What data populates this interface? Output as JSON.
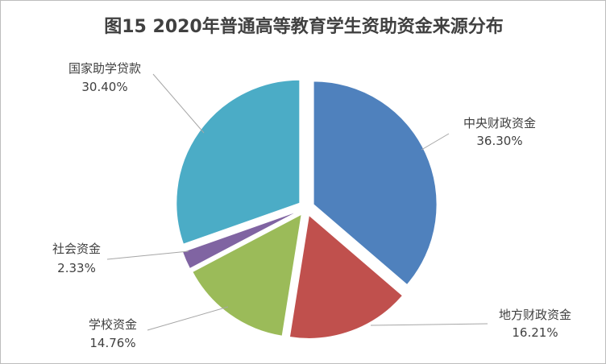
{
  "chart_data": {
    "type": "pie",
    "title": "图15  2020年普通高等教育学生资助资金来源分布",
    "start_angle_deg": 0,
    "exploded": true,
    "slices": [
      {
        "name": "中央财政资金",
        "value": 36.3,
        "label": "36.30%",
        "color": "#4F81BD"
      },
      {
        "name": "地方财政资金",
        "value": 16.21,
        "label": "16.21%",
        "color": "#C0504D"
      },
      {
        "name": "学校资金",
        "value": 14.76,
        "label": "14.76%",
        "color": "#9BBB59"
      },
      {
        "name": "社会资金",
        "value": 2.33,
        "label": "2.33%",
        "color": "#8064A2"
      },
      {
        "name": "国家助学贷款",
        "value": 30.4,
        "label": "30.40%",
        "color": "#4BACC6"
      }
    ]
  }
}
